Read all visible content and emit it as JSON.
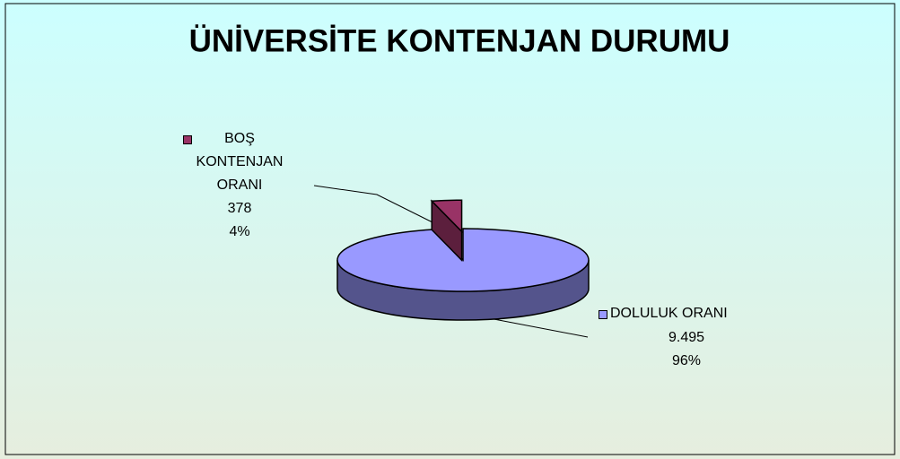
{
  "chart_data": {
    "type": "pie",
    "title": "ÜNİVERSİTE KONTENJAN DURUMU",
    "categories": [
      "DOLULUK ORANI",
      "BOŞ KONTENJAN ORANI"
    ],
    "values": [
      9495,
      378
    ],
    "value_labels": [
      "9.495",
      "378"
    ],
    "percents": [
      96,
      4
    ],
    "percent_labels": [
      "96%",
      "4%"
    ],
    "colors": [
      "#9999ff",
      "#993366"
    ]
  }
}
